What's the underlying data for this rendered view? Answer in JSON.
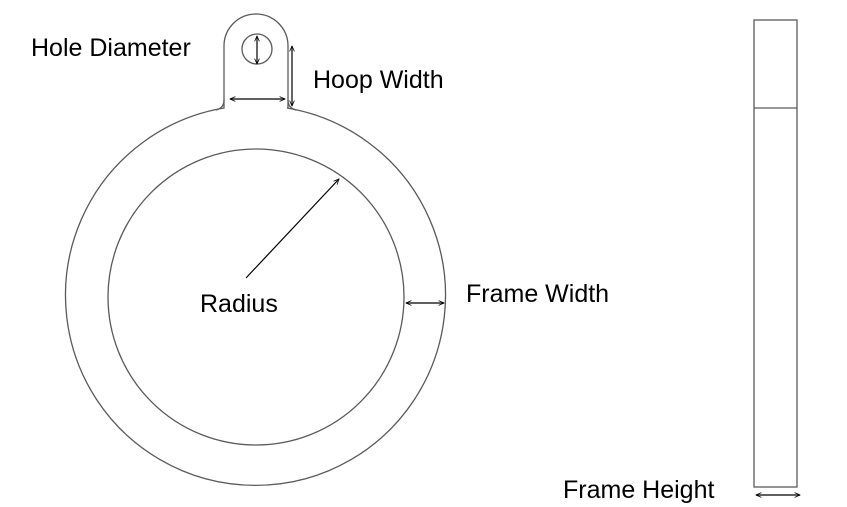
{
  "labels": {
    "hole_diameter": "Hole Diameter",
    "hoop_width": "Hoop Width",
    "radius": "Radius",
    "frame_width": "Frame Width",
    "frame_height": "Frame Height"
  },
  "colors": {
    "background": "#ffffff",
    "outline": "#5a5a5a",
    "dimension": "#000000",
    "text": "#000000"
  }
}
